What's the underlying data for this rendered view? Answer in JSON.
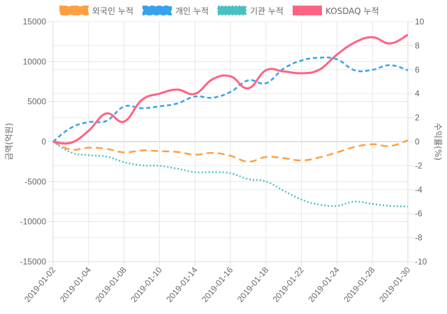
{
  "chart_data": {
    "type": "line",
    "title": "",
    "x": [
      "2019-01-02",
      "2019-01-03",
      "2019-01-04",
      "2019-01-07",
      "2019-01-08",
      "2019-01-09",
      "2019-01-10",
      "2019-01-11",
      "2019-01-14",
      "2019-01-15",
      "2019-01-16",
      "2019-01-17",
      "2019-01-18",
      "2019-01-21",
      "2019-01-22",
      "2019-01-23",
      "2019-01-24",
      "2019-01-25",
      "2019-01-28",
      "2019-01-29",
      "2019-01-30"
    ],
    "x_tick_labels": [
      "2019-01-02",
      "2019-01-04",
      "2019-01-08",
      "2019-01-10",
      "2019-01-14",
      "2019-01-16",
      "2019-01-18",
      "2019-01-22",
      "2019-01-24",
      "2019-01-28",
      "2019-01-30"
    ],
    "ylabel_left": "금액(억원)",
    "ylabel_right": "수익률(%)",
    "ylim_left": [
      -15000,
      15000
    ],
    "ylim_right": [
      -10,
      10
    ],
    "yticks_left": [
      15000,
      10000,
      5000,
      0,
      -5000,
      -10000,
      -15000
    ],
    "yticks_right": [
      10,
      8,
      6,
      4,
      2,
      0,
      -2,
      -4,
      -6,
      -8,
      -10
    ],
    "grid": true,
    "legend_position": "top",
    "series": [
      {
        "name": "외국인 누적",
        "axis": "left",
        "color": "#ff9f40",
        "style": "dashed",
        "values": [
          0,
          -990,
          -760,
          -900,
          -1340,
          -1100,
          -1190,
          -1280,
          -1630,
          -1400,
          -1770,
          -2500,
          -1920,
          -2060,
          -2350,
          -1980,
          -1340,
          -670,
          -320,
          -550,
          170
        ]
      },
      {
        "name": "개인 누적",
        "axis": "left",
        "color": "#36a2eb",
        "style": "dashed-fine",
        "values": [
          0,
          1720,
          2440,
          2590,
          4390,
          4180,
          4420,
          4770,
          5640,
          5490,
          6220,
          7670,
          7300,
          9130,
          10140,
          10490,
          10290,
          8920,
          8980,
          9560,
          8920
        ]
      },
      {
        "name": "기관 누적",
        "axis": "left",
        "color": "#4bc0c0",
        "style": "dotted",
        "values": [
          0,
          -1340,
          -1690,
          -1860,
          -2560,
          -2960,
          -3020,
          -3370,
          -3810,
          -3810,
          -3950,
          -4680,
          -4970,
          -6130,
          -7240,
          -7870,
          -8020,
          -7500,
          -7790,
          -8020,
          -8110
        ]
      },
      {
        "name": "KOSDAQ 누적",
        "axis": "right",
        "color": "#ff6384",
        "style": "solid",
        "values": [
          0,
          -0.1,
          0.9,
          2.35,
          1.67,
          3.47,
          4.0,
          4.34,
          3.99,
          5.21,
          5.45,
          4.44,
          5.95,
          5.85,
          5.7,
          5.99,
          7.25,
          8.26,
          8.7,
          8.18,
          8.9
        ]
      }
    ]
  }
}
